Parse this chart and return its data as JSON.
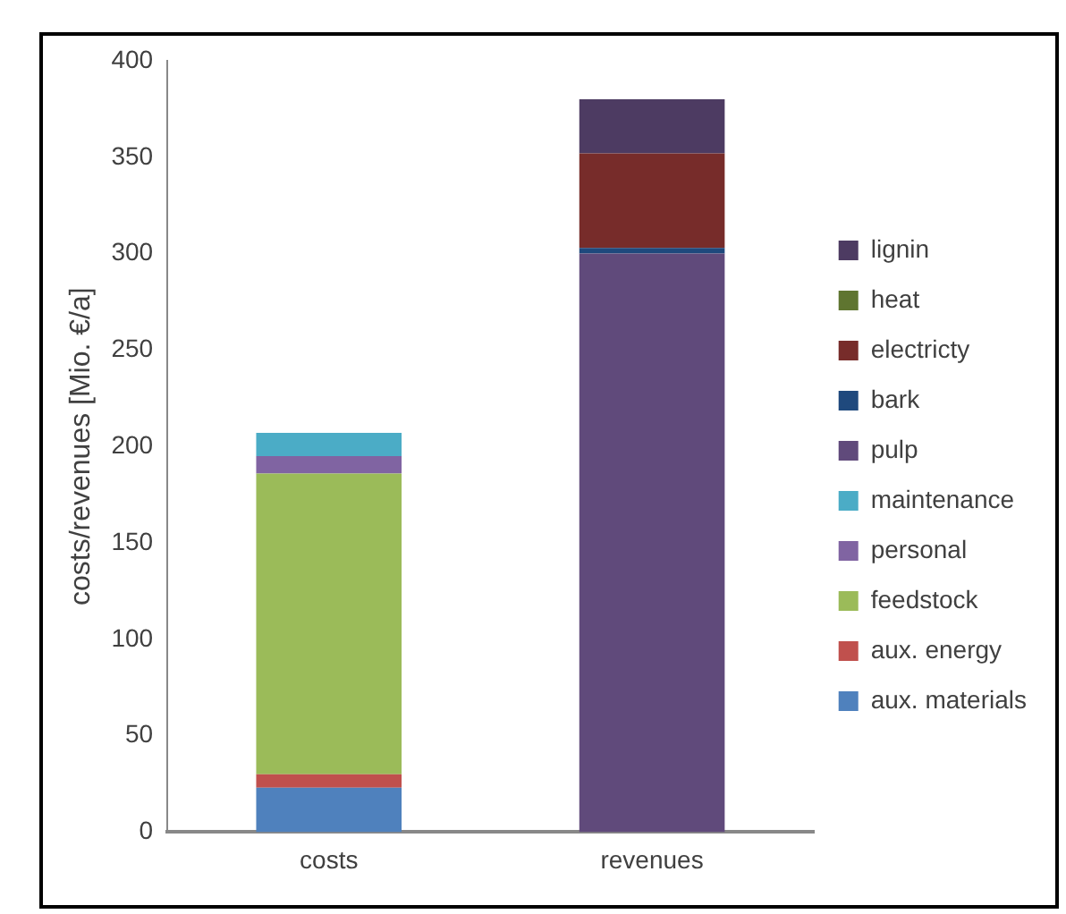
{
  "chart_data": {
    "type": "bar",
    "stacked": true,
    "ylabel": "costs/revenues [Mio. €/a]",
    "categories": [
      "costs",
      "revenues"
    ],
    "series": [
      {
        "name": "aux. materials",
        "color": "#4f81bd",
        "values": [
          23,
          0
        ]
      },
      {
        "name": "aux. energy",
        "color": "#c0504d",
        "values": [
          7,
          0
        ]
      },
      {
        "name": "feedstock",
        "color": "#9bbb59",
        "values": [
          156,
          0
        ]
      },
      {
        "name": "personal",
        "color": "#8064a2",
        "values": [
          9,
          0
        ]
      },
      {
        "name": "maintenance",
        "color": "#4bacc6",
        "values": [
          12,
          0
        ]
      },
      {
        "name": "pulp",
        "color": "#604a7b",
        "values": [
          0,
          300
        ]
      },
      {
        "name": "bark",
        "color": "#1f497d",
        "values": [
          0,
          3
        ]
      },
      {
        "name": "electricty",
        "color": "#772c2a",
        "values": [
          0,
          49
        ]
      },
      {
        "name": "heat",
        "color": "#5f7530",
        "values": [
          0,
          0
        ]
      },
      {
        "name": "lignin",
        "color": "#4d3b62",
        "values": [
          0,
          28
        ]
      }
    ],
    "ylim": [
      0,
      400
    ],
    "yticks": [
      0,
      50,
      100,
      150,
      200,
      250,
      300,
      350,
      400
    ],
    "grid": false,
    "legend": "right"
  }
}
